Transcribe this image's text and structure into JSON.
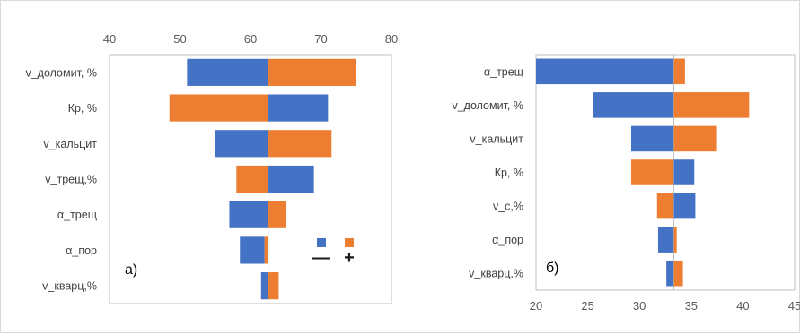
{
  "colors": {
    "negative": "#4472C4",
    "positive": "#ED7D31",
    "frame": "#bfbfbf",
    "baseline": "#a6a6a6"
  },
  "chart_data": [
    {
      "type": "bar",
      "subtype": "tornado",
      "panel_label": "а)",
      "xaxis_position": "top",
      "xlim": [
        40,
        80
      ],
      "xticks": [
        40,
        50,
        60,
        70,
        80
      ],
      "baseline": 62.5,
      "categories": [
        "v_доломит, %",
        "Кр, %",
        "v_кальцит",
        "v_трещ,%",
        "α_трещ",
        "α_пор",
        "v_кварц,%"
      ],
      "series": [
        {
          "values_low": [
            75,
            48.5,
            71.5,
            58,
            57,
            58.5,
            61.5
          ]
        },
        {
          "values_high": [
            51,
            71,
            55,
            69,
            65,
            62,
            64
          ]
        }
      ],
      "blue_bar_ranges": [
        [
          51,
          62.5
        ],
        [
          62.5,
          71
        ],
        [
          55,
          62.5
        ],
        [
          62.5,
          69
        ],
        [
          57,
          62.5
        ],
        [
          58.5,
          62
        ],
        [
          61.5,
          62.5
        ]
      ],
      "orange_bar_ranges": [
        [
          62.5,
          75
        ],
        [
          48.5,
          62.5
        ],
        [
          62.5,
          71.5
        ],
        [
          58,
          62.5
        ],
        [
          62.5,
          65
        ],
        [
          62,
          62.5
        ],
        [
          62.5,
          64
        ]
      ],
      "legend": {
        "position": "inside-lower-right",
        "entries": [
          {
            "color": "#4472C4",
            "sign": "—"
          },
          {
            "color": "#ED7D31",
            "sign": "+"
          }
        ]
      },
      "grid": false
    },
    {
      "type": "bar",
      "subtype": "tornado",
      "panel_label": "б)",
      "xaxis_position": "bottom",
      "xlim": [
        20,
        45
      ],
      "xticks": [
        20,
        25,
        30,
        35,
        40,
        45
      ],
      "baseline": 33.3,
      "categories": [
        "α_трещ",
        "v_доломит, %",
        "v_кальцит",
        "Кр, %",
        "v_c,%",
        "α_пор",
        "v_кварц,%"
      ],
      "blue_bar_ranges": [
        [
          20,
          33.3
        ],
        [
          25.5,
          33.3
        ],
        [
          29.2,
          33.3
        ],
        [
          33.3,
          35.3
        ],
        [
          33.3,
          35.4
        ],
        [
          31.8,
          33.3
        ],
        [
          32.6,
          33.3
        ]
      ],
      "orange_bar_ranges": [
        [
          33.3,
          34.4
        ],
        [
          33.3,
          40.6
        ],
        [
          33.3,
          37.5
        ],
        [
          29.2,
          33.3
        ],
        [
          31.7,
          33.3
        ],
        [
          33.3,
          33.6
        ],
        [
          33.3,
          34.2
        ]
      ],
      "grid": false
    }
  ]
}
